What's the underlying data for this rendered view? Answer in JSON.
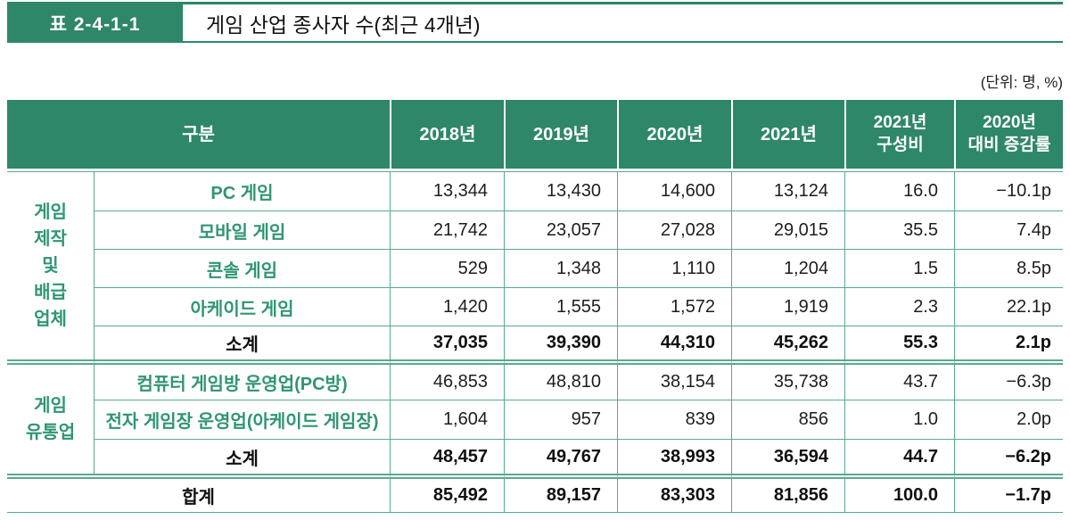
{
  "title_bar": {
    "badge": "표 2-4-1-1",
    "title": "게임 산업 종사자 수(최근 4개년)"
  },
  "unit_note": "(단위: 명, %)",
  "colors": {
    "header_green": "#2e8768",
    "rule_green": "#5aa98d",
    "label_green": "#2f9574",
    "text_dark": "#1c1c1c"
  },
  "table": {
    "header": {
      "gubun": "구분",
      "y2018": "2018년",
      "y2019": "2019년",
      "y2020": "2020년",
      "y2021": "2021년",
      "share": "2021년\n구성비",
      "change": "2020년\n대비 증감률"
    },
    "groups": [
      {
        "label": "게임\n제작\n및\n배급\n업체",
        "rows": [
          {
            "label": "PC 게임",
            "values": [
              "13,344",
              "13,430",
              "14,600",
              "13,124",
              "16.0",
              "−10.1p"
            ]
          },
          {
            "label": "모바일 게임",
            "values": [
              "21,742",
              "23,057",
              "27,028",
              "29,015",
              "35.5",
              "7.4p"
            ]
          },
          {
            "label": "콘솔 게임",
            "values": [
              "529",
              "1,348",
              "1,110",
              "1,204",
              "1.5",
              "8.5p"
            ]
          },
          {
            "label": "아케이드 게임",
            "values": [
              "1,420",
              "1,555",
              "1,572",
              "1,919",
              "2.3",
              "22.1p"
            ]
          },
          {
            "label": "소계",
            "values": [
              "37,035",
              "39,390",
              "44,310",
              "45,262",
              "55.3",
              "2.1p"
            ]
          }
        ]
      },
      {
        "label": "게임\n유통업",
        "rows": [
          {
            "label": "컴퓨터 게임방 운영업(PC방)",
            "values": [
              "46,853",
              "48,810",
              "38,154",
              "35,738",
              "43.7",
              "−6.3p"
            ]
          },
          {
            "label": "전자 게임장 운영업(아케이드 게임장)",
            "values": [
              "1,604",
              "957",
              "839",
              "856",
              "1.0",
              "2.0p"
            ]
          },
          {
            "label": "소계",
            "values": [
              "48,457",
              "49,767",
              "38,993",
              "36,594",
              "44.7",
              "−6.2p"
            ]
          }
        ]
      }
    ],
    "total": {
      "label": "합계",
      "values": [
        "85,492",
        "89,157",
        "83,303",
        "81,856",
        "100.0",
        "−1.7p"
      ]
    }
  }
}
